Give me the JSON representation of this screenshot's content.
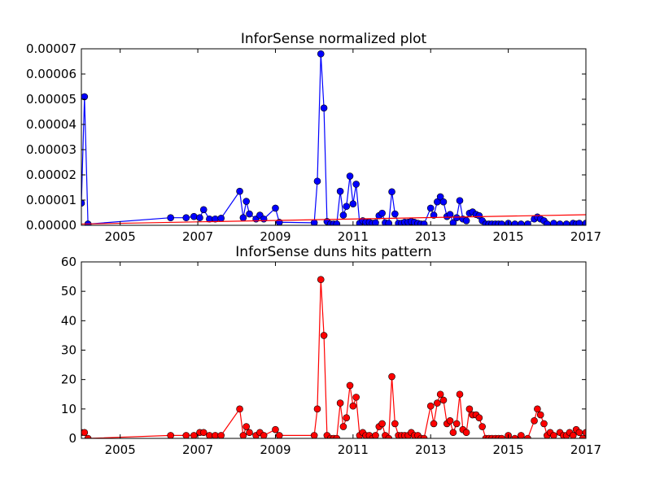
{
  "chart_data": [
    {
      "type": "line",
      "title": "InforSense normalized plot",
      "xlabel": "",
      "ylabel": "",
      "x_tick_labels": [
        "2005",
        "2007",
        "2009",
        "2011",
        "2013",
        "2015",
        "2017"
      ],
      "y_tick_labels": [
        "0.00000",
        "0.00001",
        "0.00002",
        "0.00003",
        "0.00004",
        "0.00005",
        "0.00006",
        "0.00007"
      ],
      "xlim": [
        2004.0,
        2017.0
      ],
      "ylim": [
        0,
        7e-05
      ],
      "grid": false,
      "series": [
        {
          "color": "#0000ff",
          "marker": "circle",
          "points": [
            [
              2004.0,
              8.8e-06
            ],
            [
              2004.08,
              5.1e-05
            ],
            [
              2004.17,
              5e-07
            ],
            [
              2006.3,
              3e-06
            ],
            [
              2006.7,
              3e-06
            ],
            [
              2006.9,
              3.5e-06
            ],
            [
              2007.05,
              3e-06
            ],
            [
              2007.15,
              6.2e-06
            ],
            [
              2007.3,
              2.5e-06
            ],
            [
              2007.45,
              2.5e-06
            ],
            [
              2007.6,
              2.8e-06
            ],
            [
              2008.08,
              1.35e-05
            ],
            [
              2008.17,
              3e-06
            ],
            [
              2008.25,
              9.5e-06
            ],
            [
              2008.33,
              4.5e-06
            ],
            [
              2008.5,
              2.5e-06
            ],
            [
              2008.6,
              4e-06
            ],
            [
              2008.7,
              2.5e-06
            ],
            [
              2009.0,
              6.8e-06
            ],
            [
              2009.1,
              1.2e-06
            ],
            [
              2010.0,
              1e-06
            ],
            [
              2010.08,
              1.75e-05
            ],
            [
              2010.17,
              6.8e-05
            ],
            [
              2010.25,
              4.65e-05
            ],
            [
              2010.33,
              1.5e-06
            ],
            [
              2010.42,
              5e-07
            ],
            [
              2010.5,
              5e-07
            ],
            [
              2010.58,
              5e-07
            ],
            [
              2010.67,
              1.35e-05
            ],
            [
              2010.75,
              4e-06
            ],
            [
              2010.83,
              7.5e-06
            ],
            [
              2010.92,
              1.95e-05
            ],
            [
              2011.0,
              8.5e-06
            ],
            [
              2011.08,
              1.63e-05
            ],
            [
              2011.17,
              8e-07
            ],
            [
              2011.25,
              1.8e-06
            ],
            [
              2011.33,
              1.2e-06
            ],
            [
              2011.42,
              1.2e-06
            ],
            [
              2011.5,
              8e-07
            ],
            [
              2011.58,
              1e-06
            ],
            [
              2011.67,
              3.8e-06
            ],
            [
              2011.75,
              4.8e-06
            ],
            [
              2011.83,
              1e-06
            ],
            [
              2011.92,
              8e-07
            ],
            [
              2012.0,
              1.33e-05
            ],
            [
              2012.08,
              4.5e-06
            ],
            [
              2012.17,
              8e-07
            ],
            [
              2012.25,
              8e-07
            ],
            [
              2012.33,
              1.2e-06
            ],
            [
              2012.42,
              1.2e-06
            ],
            [
              2012.5,
              1.5e-06
            ],
            [
              2012.58,
              1.2e-06
            ],
            [
              2012.67,
              8e-07
            ],
            [
              2012.75,
              5e-07
            ],
            [
              2012.83,
              5e-07
            ],
            [
              2013.0,
              6.8e-06
            ],
            [
              2013.08,
              4e-06
            ],
            [
              2013.17,
              9.3e-06
            ],
            [
              2013.25,
              1.13e-05
            ],
            [
              2013.33,
              9.3e-06
            ],
            [
              2013.42,
              3.5e-06
            ],
            [
              2013.5,
              4.3e-06
            ],
            [
              2013.58,
              1e-06
            ],
            [
              2013.67,
              3e-06
            ],
            [
              2013.75,
              9.8e-06
            ],
            [
              2013.83,
              2.5e-06
            ],
            [
              2013.92,
              1.8e-06
            ],
            [
              2014.0,
              4.8e-06
            ],
            [
              2014.08,
              5.3e-06
            ],
            [
              2014.17,
              4.3e-06
            ],
            [
              2014.25,
              3.8e-06
            ],
            [
              2014.33,
              1.8e-06
            ],
            [
              2014.42,
              5e-07
            ],
            [
              2014.5,
              5e-07
            ],
            [
              2014.58,
              5e-07
            ],
            [
              2014.67,
              5e-07
            ],
            [
              2014.75,
              5e-07
            ],
            [
              2014.83,
              5e-07
            ],
            [
              2015.0,
              8e-07
            ],
            [
              2015.17,
              5e-07
            ],
            [
              2015.33,
              5e-07
            ],
            [
              2015.5,
              5e-07
            ],
            [
              2015.67,
              2.5e-06
            ],
            [
              2015.75,
              3.3e-06
            ],
            [
              2015.83,
              2.5e-06
            ],
            [
              2015.92,
              1.8e-06
            ],
            [
              2016.0,
              5e-07
            ],
            [
              2016.17,
              8e-07
            ],
            [
              2016.33,
              5e-07
            ],
            [
              2016.5,
              5e-07
            ],
            [
              2016.67,
              8e-07
            ],
            [
              2016.75,
              5e-07
            ],
            [
              2016.83,
              8e-07
            ],
            [
              2017.0,
              8e-07
            ]
          ]
        },
        {
          "color": "#ff0000",
          "marker": "none",
          "points": [
            [
              2004.0,
              5e-07
            ],
            [
              2017.0,
              4.2e-06
            ]
          ]
        }
      ]
    },
    {
      "type": "line",
      "title": "InforSense duns hits pattern",
      "xlabel": "",
      "ylabel": "",
      "x_tick_labels": [
        "2005",
        "2007",
        "2009",
        "2011",
        "2013",
        "2015",
        "2017"
      ],
      "y_tick_labels": [
        "0",
        "10",
        "20",
        "30",
        "40",
        "50",
        "60"
      ],
      "xlim": [
        2004.0,
        2017.0
      ],
      "ylim": [
        0,
        60
      ],
      "grid": false,
      "series": [
        {
          "color": "#ff0000",
          "marker": "circle",
          "points": [
            [
              2004.0,
              2
            ],
            [
              2004.08,
              2
            ],
            [
              2004.17,
              0
            ],
            [
              2006.3,
              1
            ],
            [
              2006.7,
              1
            ],
            [
              2006.9,
              1
            ],
            [
              2007.05,
              2
            ],
            [
              2007.15,
              2
            ],
            [
              2007.3,
              1
            ],
            [
              2007.45,
              1
            ],
            [
              2007.6,
              1
            ],
            [
              2008.08,
              10
            ],
            [
              2008.17,
              1
            ],
            [
              2008.25,
              4
            ],
            [
              2008.33,
              2
            ],
            [
              2008.5,
              1
            ],
            [
              2008.6,
              2
            ],
            [
              2008.7,
              1
            ],
            [
              2009.0,
              3
            ],
            [
              2009.1,
              1
            ],
            [
              2010.0,
              1
            ],
            [
              2010.08,
              10
            ],
            [
              2010.17,
              54
            ],
            [
              2010.25,
              35
            ],
            [
              2010.33,
              1
            ],
            [
              2010.42,
              0
            ],
            [
              2010.5,
              0
            ],
            [
              2010.58,
              0
            ],
            [
              2010.67,
              12
            ],
            [
              2010.75,
              4
            ],
            [
              2010.83,
              7
            ],
            [
              2010.92,
              18
            ],
            [
              2011.0,
              11
            ],
            [
              2011.08,
              14
            ],
            [
              2011.17,
              1
            ],
            [
              2011.25,
              2
            ],
            [
              2011.33,
              1
            ],
            [
              2011.42,
              1
            ],
            [
              2011.5,
              0
            ],
            [
              2011.58,
              1
            ],
            [
              2011.67,
              4
            ],
            [
              2011.75,
              5
            ],
            [
              2011.83,
              1
            ],
            [
              2011.92,
              0
            ],
            [
              2012.0,
              21
            ],
            [
              2012.08,
              5
            ],
            [
              2012.17,
              1
            ],
            [
              2012.25,
              1
            ],
            [
              2012.33,
              1
            ],
            [
              2012.42,
              1
            ],
            [
              2012.5,
              2
            ],
            [
              2012.58,
              1
            ],
            [
              2012.67,
              1
            ],
            [
              2012.75,
              0
            ],
            [
              2012.83,
              0
            ],
            [
              2013.0,
              11
            ],
            [
              2013.08,
              5
            ],
            [
              2013.17,
              12
            ],
            [
              2013.25,
              15
            ],
            [
              2013.33,
              13
            ],
            [
              2013.42,
              5
            ],
            [
              2013.5,
              6
            ],
            [
              2013.58,
              2
            ],
            [
              2013.67,
              5
            ],
            [
              2013.75,
              15
            ],
            [
              2013.83,
              3
            ],
            [
              2013.92,
              2
            ],
            [
              2014.0,
              10
            ],
            [
              2014.08,
              8
            ],
            [
              2014.17,
              8
            ],
            [
              2014.25,
              7
            ],
            [
              2014.33,
              4
            ],
            [
              2014.42,
              0
            ],
            [
              2014.5,
              0
            ],
            [
              2014.58,
              0
            ],
            [
              2014.67,
              0
            ],
            [
              2014.75,
              0
            ],
            [
              2014.83,
              0
            ],
            [
              2015.0,
              1
            ],
            [
              2015.17,
              0
            ],
            [
              2015.33,
              1
            ],
            [
              2015.5,
              0
            ],
            [
              2015.67,
              6
            ],
            [
              2015.75,
              10
            ],
            [
              2015.83,
              8
            ],
            [
              2015.92,
              5
            ],
            [
              2016.0,
              1
            ],
            [
              2016.08,
              2
            ],
            [
              2016.17,
              1
            ],
            [
              2016.33,
              2
            ],
            [
              2016.42,
              1
            ],
            [
              2016.5,
              1
            ],
            [
              2016.58,
              2
            ],
            [
              2016.67,
              1
            ],
            [
              2016.75,
              3
            ],
            [
              2016.83,
              2
            ],
            [
              2016.92,
              0
            ],
            [
              2017.0,
              2
            ]
          ]
        }
      ]
    }
  ]
}
